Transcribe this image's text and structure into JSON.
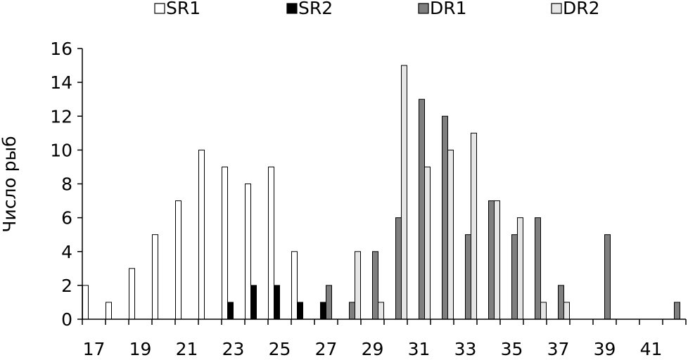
{
  "chart_data": {
    "type": "bar",
    "title": "",
    "xlabel": "",
    "ylabel": "Число рыб",
    "ylim": [
      0,
      16
    ],
    "yticks": [
      "0",
      "2",
      "4",
      "6",
      "8",
      "10",
      "12",
      "14",
      "16"
    ],
    "x": [
      17,
      18,
      19,
      20,
      21,
      22,
      23,
      24,
      25,
      26,
      27,
      28,
      29,
      30,
      31,
      32,
      33,
      34,
      35,
      36,
      37,
      38,
      39,
      40,
      41,
      42
    ],
    "xtick_labels": [
      "17",
      "19",
      "21",
      "23",
      "25",
      "27",
      "29",
      "31",
      "33",
      "35",
      "37",
      "39",
      "41"
    ],
    "legend_position": "top",
    "grid": false,
    "series": [
      {
        "name": "SR1",
        "color": "#ffffff",
        "values": [
          2,
          1,
          3,
          5,
          7,
          10,
          9,
          8,
          9,
          4,
          0,
          0,
          0,
          0,
          0,
          0,
          0,
          0,
          0,
          0,
          0,
          0,
          0,
          0,
          0,
          0
        ]
      },
      {
        "name": "SR2",
        "color": "#000000",
        "values": [
          0,
          0,
          0,
          0,
          0,
          0,
          1,
          2,
          2,
          1,
          1,
          0,
          0,
          0,
          0,
          0,
          0,
          0,
          0,
          0,
          0,
          0,
          0,
          0,
          0,
          0
        ]
      },
      {
        "name": "DR1",
        "color": "#7f7f7f",
        "values": [
          0,
          0,
          0,
          0,
          0,
          0,
          0,
          0,
          0,
          0,
          2,
          1,
          4,
          6,
          13,
          12,
          5,
          7,
          5,
          6,
          2,
          0,
          5,
          0,
          0,
          1
        ]
      },
      {
        "name": "DR2",
        "color": "#e6e6e6",
        "values": [
          0,
          0,
          0,
          0,
          0,
          0,
          0,
          0,
          0,
          0,
          0,
          4,
          1,
          15,
          9,
          10,
          11,
          7,
          6,
          1,
          1,
          0,
          0,
          0,
          0,
          0
        ]
      }
    ]
  }
}
